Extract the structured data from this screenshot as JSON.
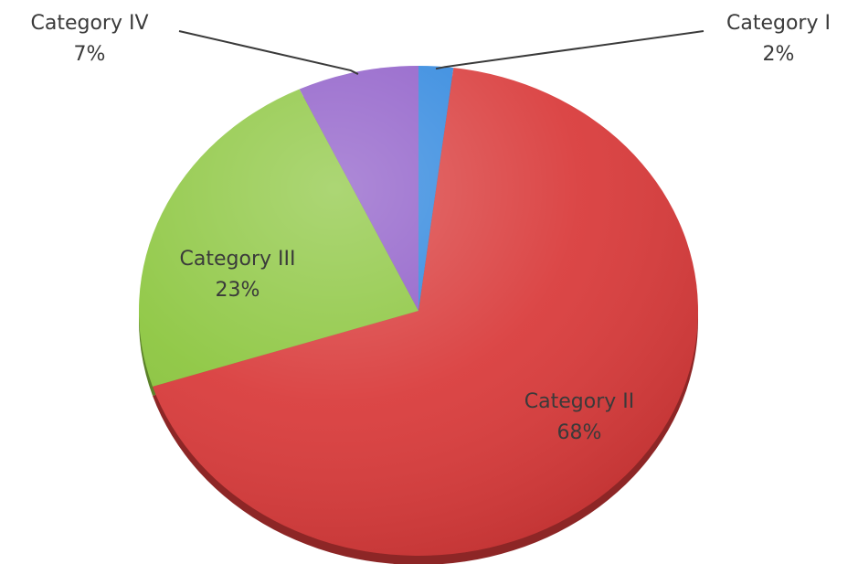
{
  "chart_data": {
    "type": "pie",
    "title": "",
    "slices": [
      {
        "label": "Category I",
        "value": 2,
        "value_label": "2%",
        "color": "#2e86de"
      },
      {
        "label": "Category II",
        "value": 68,
        "value_label": "68%",
        "color": "#d93b3b"
      },
      {
        "label": "Category III",
        "value": 23,
        "value_label": "23%",
        "color": "#8cc63f"
      },
      {
        "label": "Category IV",
        "value": 7,
        "value_label": "7%",
        "color": "#8e5cc8"
      }
    ],
    "style": "3d-pie",
    "label_placement": "inside for Category II and Category III, outside with leader lines for Category I and Category IV",
    "start": "12 o'clock, clockwise"
  }
}
